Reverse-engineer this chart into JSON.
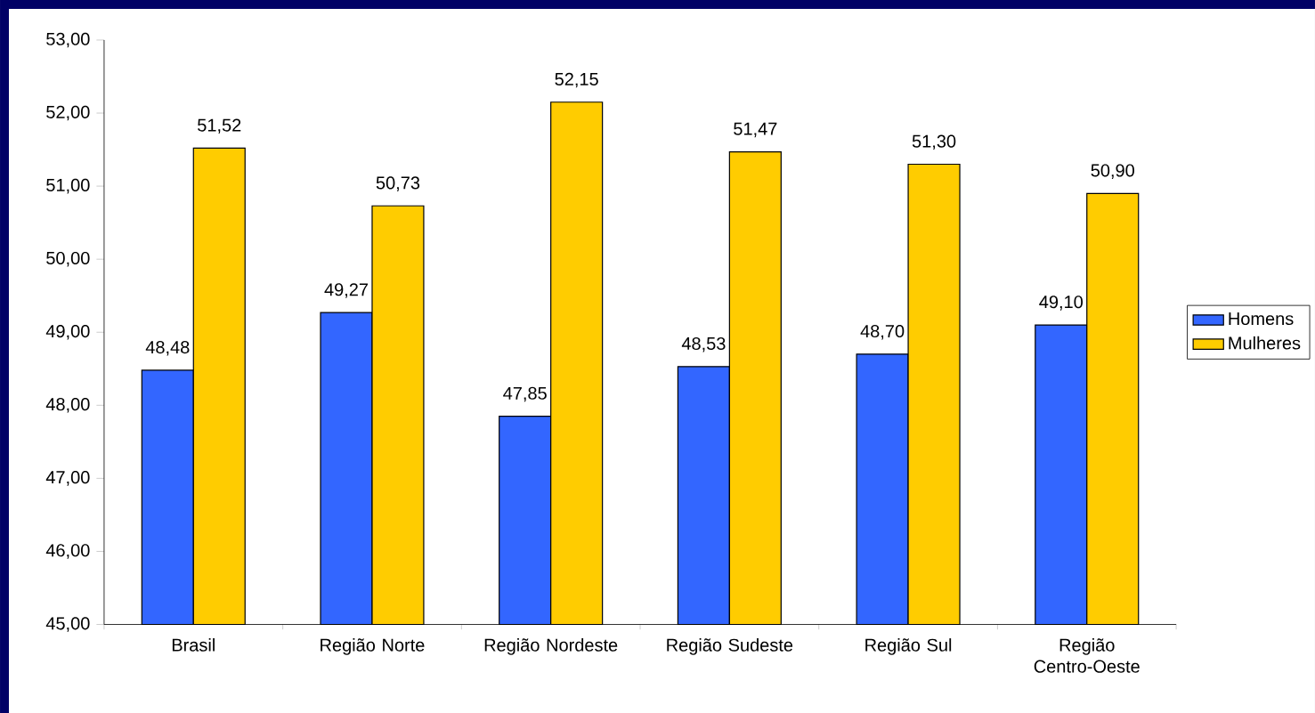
{
  "chart_data": {
    "type": "bar",
    "categories": [
      "Brasil",
      "Região Norte",
      "Região Nordeste",
      "Região Sudeste",
      "Região Sul",
      "Região Centro-Oeste"
    ],
    "series": [
      {
        "name": "Homens",
        "color": "#3366ff",
        "values": [
          48.48,
          49.27,
          47.85,
          48.53,
          48.7,
          49.1
        ],
        "value_labels": [
          "48,48",
          "49,27",
          "47,85",
          "48,53",
          "48,70",
          "49,10"
        ]
      },
      {
        "name": "Mulheres",
        "color": "#ffcc00",
        "values": [
          51.52,
          50.73,
          52.15,
          51.47,
          51.3,
          50.9
        ],
        "value_labels": [
          "51,52",
          "50,73",
          "52,15",
          "51,47",
          "51,30",
          "50,90"
        ]
      }
    ],
    "ylim": [
      45,
      53
    ],
    "yticks": [
      {
        "value": 45,
        "label": "45,00"
      },
      {
        "value": 46,
        "label": "46,00"
      },
      {
        "value": 47,
        "label": "47,00"
      },
      {
        "value": 48,
        "label": "48,00"
      },
      {
        "value": 49,
        "label": "49,00"
      },
      {
        "value": 50,
        "label": "50,00"
      },
      {
        "value": 51,
        "label": "51,00"
      },
      {
        "value": 52,
        "label": "52,00"
      },
      {
        "value": 53,
        "label": "53,00"
      }
    ],
    "grid": false,
    "legend": "right"
  }
}
